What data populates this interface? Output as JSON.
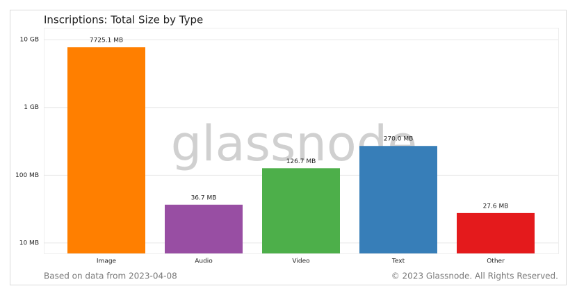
{
  "chart_data": {
    "type": "bar",
    "title": "Inscriptions: Total Size by Type",
    "categories": [
      "Image",
      "Audio",
      "Video",
      "Text",
      "Other"
    ],
    "values": [
      7725.1,
      36.7,
      126.7,
      270,
      27.6
    ],
    "value_labels": [
      "7725.1 MB",
      "36.7 MB",
      "126.7 MB",
      "270.0 MB",
      "27.6 MB"
    ],
    "colors": [
      "#ff7f00",
      "#984ea3",
      "#4daf4a",
      "#377eb8",
      "#e41a1c"
    ],
    "log_scale": true,
    "grid": true,
    "ylim": [
      7,
      15000
    ],
    "yticks": [
      {
        "value": 10,
        "label": "10 MB"
      },
      {
        "value": 100,
        "label": "100 MB"
      },
      {
        "value": 1000,
        "label": "1 GB"
      },
      {
        "value": 10000,
        "label": "10 GB"
      }
    ],
    "watermark": "glassnode",
    "footnote": "Based on data from 2023-04-08",
    "copyright": "© 2023 Glassnode. All Rights Reserved."
  }
}
